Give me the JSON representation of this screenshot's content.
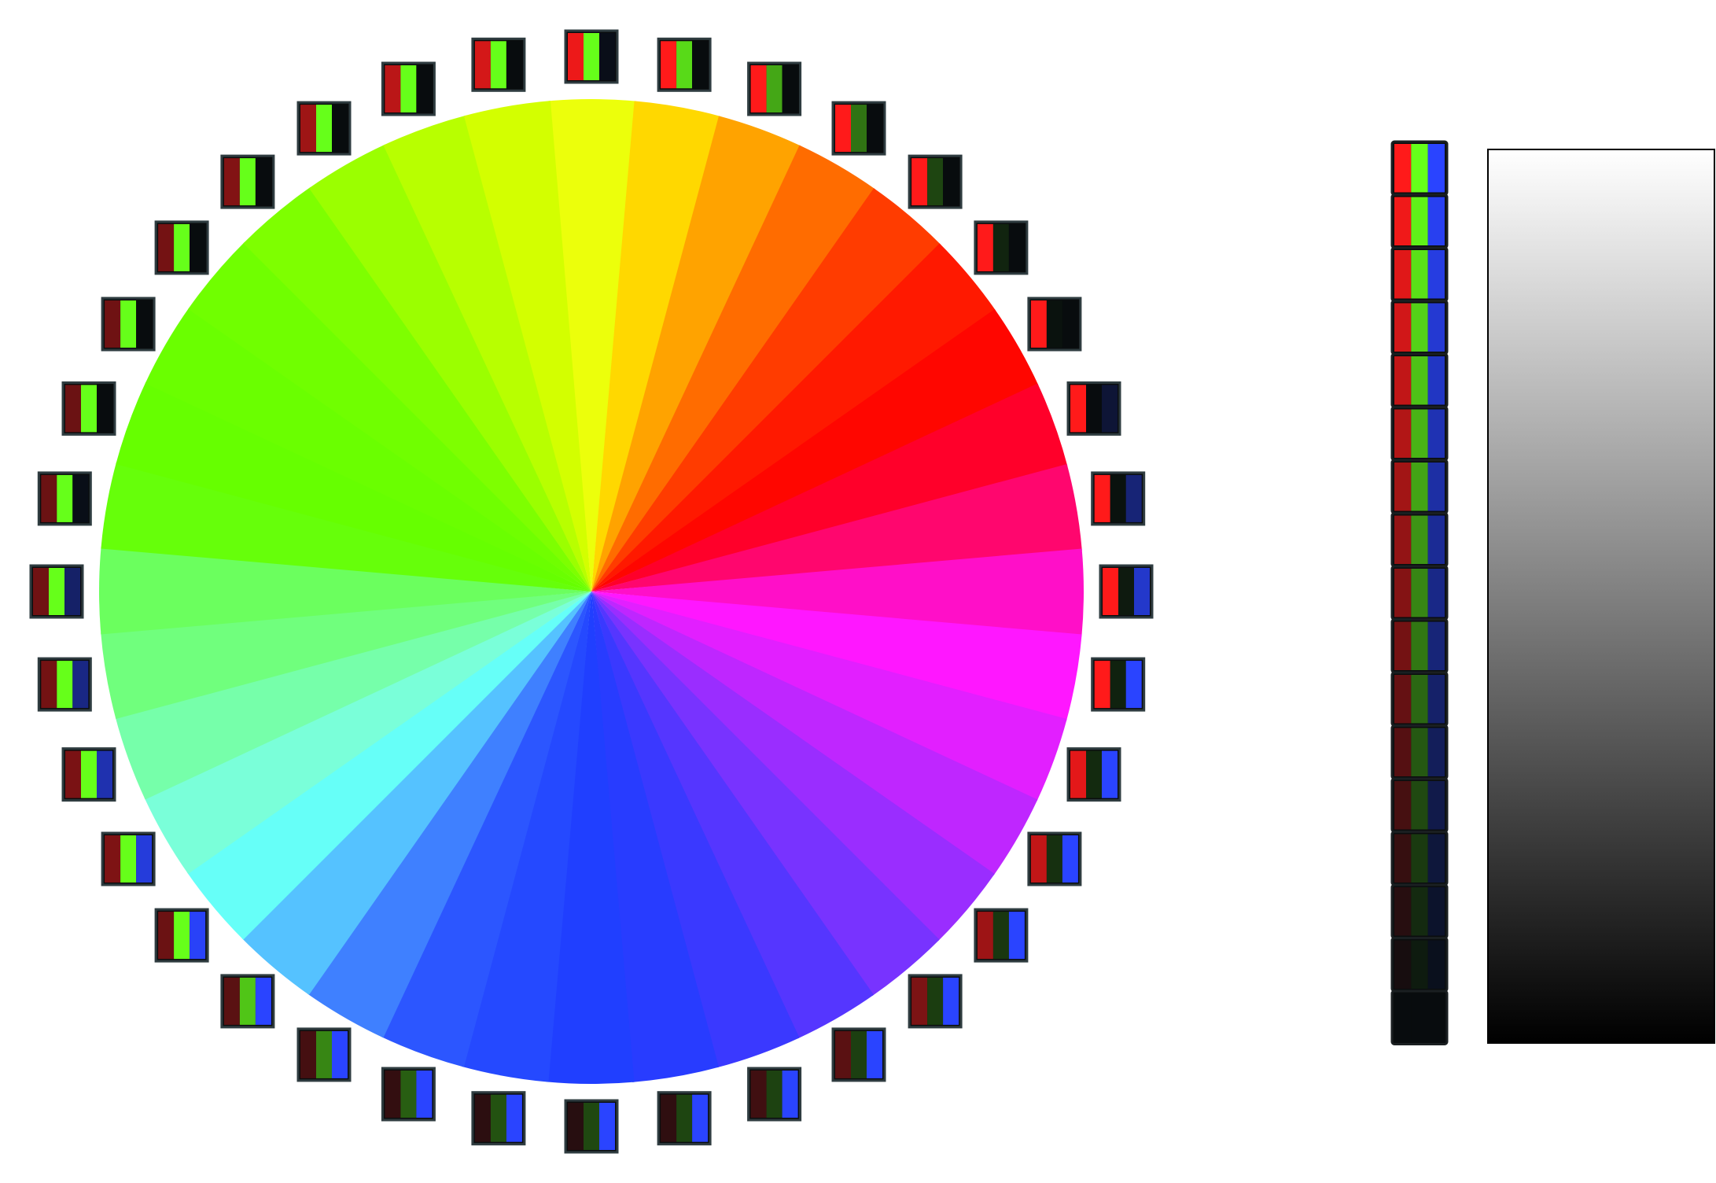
{
  "figure": {
    "kind": "color-wheel-rgb-decomposition",
    "background": "#ffffff",
    "wheel": {
      "segments": 36,
      "start_angle_deg": 0,
      "direction": "clockwise-from-top",
      "swatch_style": "three-bar RGB tiles (R | G | B channel intensity)"
    },
    "hues": [
      {
        "color": "#ecff0b",
        "r": 236,
        "g": 255,
        "b": 11
      },
      {
        "color": "#ffd800",
        "r": 255,
        "g": 216,
        "b": 0
      },
      {
        "color": "#ffa300",
        "r": 255,
        "g": 163,
        "b": 0
      },
      {
        "color": "#ff6c00",
        "r": 255,
        "g": 108,
        "b": 0
      },
      {
        "color": "#ff3c00",
        "r": 255,
        "g": 60,
        "b": 0
      },
      {
        "color": "#ff1900",
        "r": 255,
        "g": 25,
        "b": 0
      },
      {
        "color": "#ff0600",
        "r": 255,
        "g": 6,
        "b": 0
      },
      {
        "color": "#ff002a",
        "r": 255,
        "g": 0,
        "b": 42
      },
      {
        "color": "#ff066e",
        "r": 255,
        "g": 6,
        "b": 110
      },
      {
        "color": "#ff0fc8",
        "r": 255,
        "g": 15,
        "b": 200
      },
      {
        "color": "#ff17ff",
        "r": 255,
        "g": 23,
        "b": 255
      },
      {
        "color": "#e21fff",
        "r": 226,
        "g": 31,
        "b": 255
      },
      {
        "color": "#bf26ff",
        "r": 191,
        "g": 38,
        "b": 255
      },
      {
        "color": "#9a2dff",
        "r": 154,
        "g": 45,
        "b": 255
      },
      {
        "color": "#7833ff",
        "r": 120,
        "g": 51,
        "b": 255
      },
      {
        "color": "#5536ff",
        "r": 85,
        "g": 54,
        "b": 255
      },
      {
        "color": "#3a39ff",
        "r": 58,
        "g": 57,
        "b": 255
      },
      {
        "color": "#283cff",
        "r": 40,
        "g": 60,
        "b": 255
      },
      {
        "color": "#203fff",
        "r": 32,
        "g": 63,
        "b": 255
      },
      {
        "color": "#2549ff",
        "r": 37,
        "g": 73,
        "b": 255
      },
      {
        "color": "#2c56ff",
        "r": 44,
        "g": 86,
        "b": 255
      },
      {
        "color": "#3f80ff",
        "r": 63,
        "g": 128,
        "b": 255
      },
      {
        "color": "#55c2ff",
        "r": 85,
        "g": 194,
        "b": 255
      },
      {
        "color": "#66fff8",
        "r": 102,
        "g": 255,
        "b": 248
      },
      {
        "color": "#7affd9",
        "r": 122,
        "g": 255,
        "b": 217
      },
      {
        "color": "#76ffaa",
        "r": 118,
        "g": 255,
        "b": 170
      },
      {
        "color": "#70ff7d",
        "r": 112,
        "g": 255,
        "b": 125
      },
      {
        "color": "#6bff5e",
        "r": 107,
        "g": 255,
        "b": 94
      },
      {
        "color": "#66ff0a",
        "r": 102,
        "g": 255,
        "b": 10
      },
      {
        "color": "#66ff00",
        "r": 102,
        "g": 255,
        "b": 0
      },
      {
        "color": "#6aff00",
        "r": 106,
        "g": 255,
        "b": 0
      },
      {
        "color": "#70ff00",
        "r": 112,
        "g": 255,
        "b": 0
      },
      {
        "color": "#7eff00",
        "r": 126,
        "g": 255,
        "b": 0
      },
      {
        "color": "#9bff00",
        "r": 155,
        "g": 255,
        "b": 0
      },
      {
        "color": "#b8ff00",
        "r": 184,
        "g": 255,
        "b": 0
      },
      {
        "color": "#d3ff00",
        "r": 211,
        "g": 255,
        "b": 0
      }
    ],
    "value_scale": {
      "steps": 17,
      "top_color": "#ffffff",
      "bottom_color": "#000000"
    },
    "base_channel_colors": {
      "red": "#ff1a1a",
      "green": "#66ff1a",
      "blue": "#2a44ff"
    }
  }
}
